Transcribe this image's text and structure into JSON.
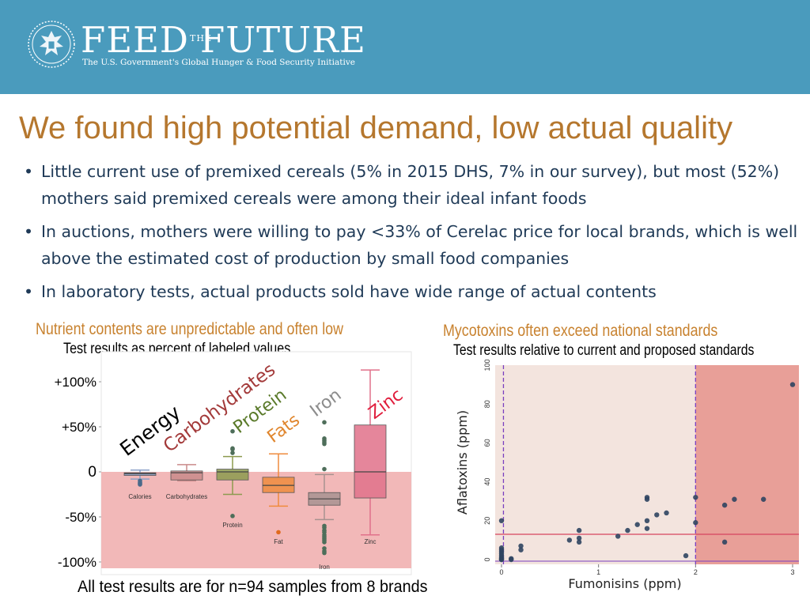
{
  "header": {
    "brand_left": "FEED",
    "brand_the": "THE",
    "brand_right": "FUTURE",
    "tagline": "The U.S. Government's Global Hunger & Food Security Initiative",
    "logo_icon": "us-government-seal-icon",
    "banner_color": "#4a9bbd"
  },
  "slide": {
    "title": "We found high potential demand, low actual quality",
    "bullets": [
      "Little current use of premixed cereals (5% in 2015 DHS, 7% in our survey), but most (52%) mothers said premixed cereals were among their ideal infant foods",
      "In auctions, mothers were willing to pay <33% of Cerelac price for local brands, which is well above the estimated cost of production by small food companies",
      "In laboratory tests, actual products sold have wide range of actual contents"
    ],
    "footnote": "All test results are for n=94 samples from 8 brands",
    "title_color": "#b5772e",
    "text_color": "#1f3a57"
  },
  "left_panel": {
    "heading": "Nutrient contents are unpredictable and often low",
    "subheading": "Test results as percent of labeled values"
  },
  "right_panel": {
    "heading": "Mycotoxins often exceed national standards",
    "subheading": "Test results relative to current and proposed standards"
  },
  "chart_data": [
    {
      "type": "box",
      "ylim": [
        -100,
        120
      ],
      "y_ticks": [
        "+100%",
        "+50%",
        "0",
        "-50%",
        "-100%"
      ],
      "y_tick_values": [
        100,
        50,
        0,
        -50,
        -100
      ],
      "shaded_region": [
        -100,
        0
      ],
      "shaded_color": "#f2b8b8",
      "categories": [
        "Calories",
        "Carbohydrates",
        "Protein",
        "Fat",
        "Iron",
        "Zinc"
      ],
      "annotations": [
        "Energy",
        "Carbohydrates",
        "Protein",
        "Fats",
        "Iron",
        "Zinc"
      ],
      "annotation_colors": [
        "#000000",
        "#a33a3a",
        "#5a7a2a",
        "#e0862e",
        "#8c8c8c",
        "#e01d3c"
      ],
      "series": [
        {
          "name": "Calories",
          "color": "#8aa0c8",
          "min": -8,
          "q1": -4,
          "median": -2,
          "q3": -1,
          "max": 2,
          "outliers": [
            -10,
            -12,
            -13,
            -14
          ]
        },
        {
          "name": "Carbohydrates",
          "color": "#c98a8a",
          "min": -10,
          "q1": -9,
          "median": -1,
          "q3": 1,
          "max": 8,
          "outliers": []
        },
        {
          "name": "Protein",
          "color": "#8c9a4e",
          "min": -25,
          "q1": -9,
          "median": 0,
          "q3": 3,
          "max": 17,
          "outliers": [
            -49,
            21,
            25,
            26,
            45
          ]
        },
        {
          "name": "Fat",
          "color": "#ef8b3d",
          "min": -38,
          "q1": -23,
          "median": -15,
          "q3": -6,
          "max": 20,
          "outliers": [
            -67
          ]
        },
        {
          "name": "Iron",
          "color": "#a89290",
          "min": -53,
          "q1": -37,
          "median": -30,
          "q3": -23,
          "max": -3,
          "outliers": [
            -60,
            -62,
            -65,
            -67,
            -70,
            -72,
            -74,
            -76,
            -78,
            -85,
            -88,
            -90,
            3,
            31,
            33,
            35,
            37,
            55
          ]
        },
        {
          "name": "Zinc",
          "color": "#e0718a",
          "min": -70,
          "q1": -29,
          "median": 0,
          "q3": 52,
          "max": 113,
          "outliers": []
        }
      ]
    },
    {
      "type": "scatter",
      "xlabel": "Fumonisins (ppm)",
      "ylabel": "Aflatoxins (ppm)",
      "xlim": [
        0,
        3
      ],
      "ylim": [
        0,
        100
      ],
      "x_ticks": [
        0,
        1,
        2,
        3
      ],
      "y_ticks": [
        0,
        20,
        40,
        60,
        80,
        100
      ],
      "reference_lines": {
        "vertical": [
          0.02,
          2
        ],
        "horizontal": [
          13
        ]
      },
      "points": [
        [
          0,
          20
        ],
        [
          0,
          6
        ],
        [
          0,
          5
        ],
        [
          0,
          4
        ],
        [
          0,
          3
        ],
        [
          0,
          2
        ],
        [
          0,
          1
        ],
        [
          0,
          0.5
        ],
        [
          0,
          0
        ],
        [
          0,
          0
        ],
        [
          0.1,
          0.5
        ],
        [
          0.1,
          0
        ],
        [
          0.2,
          7
        ],
        [
          0.2,
          5
        ],
        [
          0.7,
          10
        ],
        [
          0.8,
          15
        ],
        [
          0.8,
          11
        ],
        [
          0.8,
          9
        ],
        [
          1.2,
          12
        ],
        [
          1.3,
          15
        ],
        [
          1.4,
          18
        ],
        [
          1.5,
          32
        ],
        [
          1.5,
          31
        ],
        [
          1.5,
          20
        ],
        [
          1.5,
          16
        ],
        [
          1.6,
          23
        ],
        [
          1.7,
          24
        ],
        [
          1.9,
          2
        ],
        [
          2,
          32
        ],
        [
          2,
          19
        ],
        [
          2.3,
          28
        ],
        [
          2.3,
          9
        ],
        [
          2.4,
          31
        ],
        [
          2.7,
          31
        ],
        [
          3,
          90
        ]
      ]
    }
  ]
}
